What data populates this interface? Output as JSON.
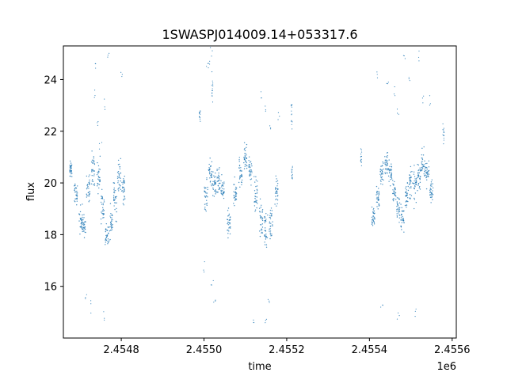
{
  "chart_data": {
    "type": "scatter",
    "title": "1SWASPJ014009.14+053317.6",
    "xlabel": "time",
    "ylabel": "flux",
    "x_offset_label": "1e6",
    "xlim": [
      2454660,
      2455610
    ],
    "ylim": [
      14.0,
      25.3
    ],
    "x_ticks": [
      2454800,
      2455000,
      2455200,
      2455400,
      2455600
    ],
    "x_tick_labels": [
      "2.4548",
      "2.4550",
      "2.4552",
      "2.4554",
      "2.4556"
    ],
    "y_ticks": [
      16,
      18,
      20,
      22,
      24
    ],
    "y_tick_labels": [
      "16",
      "18",
      "20",
      "22",
      "24"
    ],
    "grid": false,
    "legend": "none",
    "marker_color": "#1f77b4",
    "series": [
      {
        "name": "",
        "description": "dense light-curve dots; per-night mean flux with scatter",
        "x": [
          2454678,
          2454690,
          2454702,
          2454710,
          2454720,
          2454732,
          2454745,
          2454755,
          2454765,
          2454775,
          2454785,
          2454795,
          2454805,
          2455005,
          2455015,
          2455025,
          2455035,
          2455045,
          2455060,
          2455075,
          2455088,
          2455100,
          2455112,
          2455125,
          2455138,
          2455150,
          2455162,
          2455175,
          2455410,
          2455420,
          2455430,
          2455440,
          2455450,
          2455460,
          2455470,
          2455480,
          2455490,
          2455500,
          2455510,
          2455520,
          2455530,
          2455540,
          2455550
        ],
        "y": [
          20.5,
          19.6,
          18.6,
          18.3,
          19.8,
          20.6,
          20.2,
          19.1,
          18.0,
          18.4,
          19.4,
          20.3,
          19.8,
          19.5,
          20.4,
          19.9,
          20.0,
          19.7,
          18.4,
          19.6,
          20.4,
          21.0,
          20.5,
          19.5,
          18.6,
          18.2,
          18.4,
          19.7,
          18.7,
          19.5,
          20.3,
          20.8,
          20.4,
          19.7,
          19.0,
          18.6,
          19.6,
          20.0,
          19.8,
          20.3,
          20.7,
          20.4,
          19.6
        ],
        "band_half_width": [
          0.3,
          0.4,
          0.5,
          0.4,
          0.6,
          0.6,
          0.8,
          0.6,
          0.5,
          0.6,
          0.7,
          0.7,
          0.6,
          0.7,
          0.5,
          0.5,
          0.5,
          0.5,
          0.5,
          0.5,
          0.6,
          0.5,
          0.5,
          0.6,
          0.7,
          0.7,
          0.6,
          0.5,
          0.4,
          0.5,
          0.6,
          0.5,
          0.5,
          0.5,
          0.5,
          0.5,
          0.6,
          0.6,
          0.6,
          0.5,
          0.5,
          0.5,
          0.5
        ]
      },
      {
        "name": "",
        "description": "sparse outlier dots",
        "x": [
          2454735,
          2454738,
          2454770,
          2454800,
          2454742,
          2454760,
          2454750,
          2455012,
          2455018,
          2455008,
          2455140,
          2455150,
          2455160,
          2455180,
          2455420,
          2455445,
          2455462,
          2455470,
          2455485,
          2455498,
          2455520,
          2455530,
          2455545,
          2454728,
          2454760,
          2454715,
          2455025,
          2455120,
          2455150,
          2455158,
          2455430,
          2455470,
          2455510,
          2455020,
          2455000
        ],
        "y": [
          24.5,
          23.5,
          24.9,
          24.3,
          22.2,
          23.0,
          21.5,
          24.8,
          25.0,
          24.6,
          23.5,
          22.8,
          22.0,
          22.6,
          24.3,
          23.8,
          23.5,
          22.9,
          25.0,
          24.2,
          24.9,
          23.3,
          23.2,
          15.2,
          14.9,
          15.6,
          15.3,
          14.8,
          14.7,
          15.6,
          15.2,
          14.8,
          15.0,
          16.2,
          16.8
        ]
      },
      {
        "name": "",
        "description": "short isolated clusters",
        "x": [
          2454990,
          2455020,
          2455212,
          2455213,
          2455380,
          2455579
        ],
        "y": [
          22.6,
          23.8,
          22.8,
          20.4,
          21.0,
          21.9
        ],
        "band_half_width": [
          0.25,
          0.6,
          0.6,
          0.3,
          0.4,
          0.4
        ]
      }
    ]
  }
}
